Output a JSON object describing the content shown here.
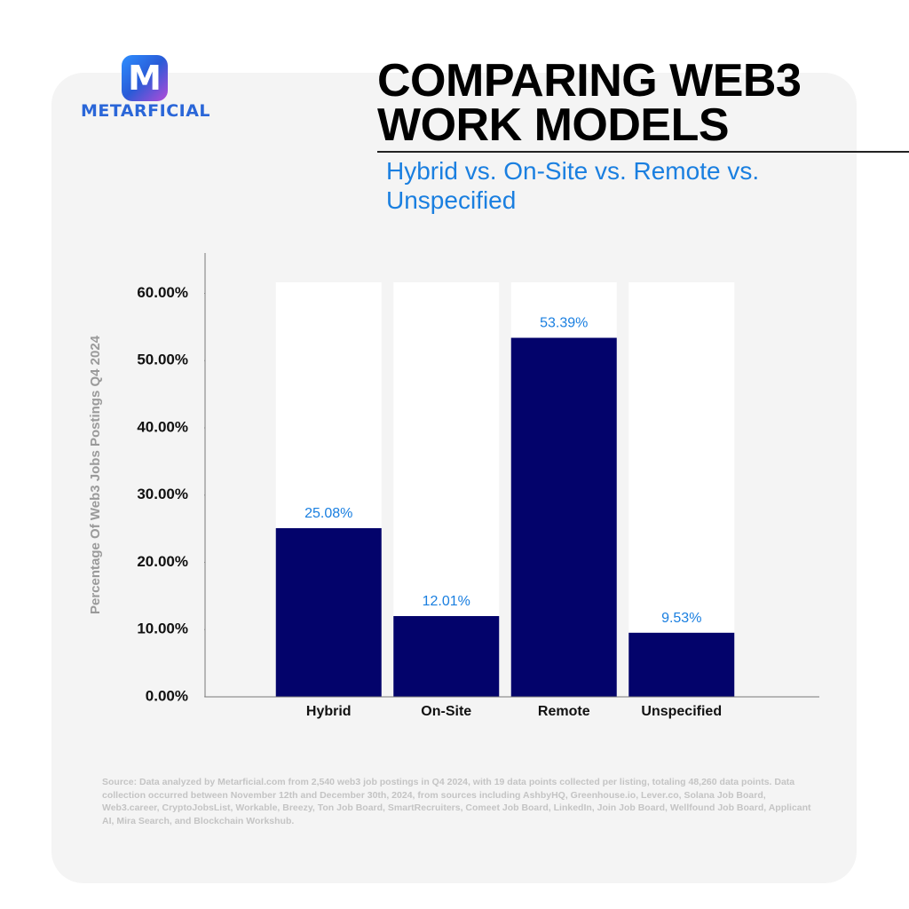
{
  "logo": {
    "letter": "M",
    "name": "METARFICIAL"
  },
  "chart_data": {
    "type": "bar",
    "title": "COMPARING WEB3 WORK MODELS",
    "subtitle": "Hybrid vs. On-Site vs. Remote vs. Unspecified",
    "y_label": "Percentage Of Web3 Jobs Postings Q4 2024",
    "categories": [
      "Hybrid",
      "On-Site",
      "Remote",
      "Unspecified"
    ],
    "values": [
      25.08,
      12.01,
      53.39,
      9.53
    ],
    "value_labels": [
      "25.08%",
      "12.01%",
      "53.39%",
      "9.53%"
    ],
    "color": "#03036b",
    "label_color": "#1a7fe0",
    "ylim": [
      0,
      66
    ],
    "yticks": [
      {
        "value": 0,
        "label": "0.00%"
      },
      {
        "value": 10,
        "label": "10.00%"
      },
      {
        "value": 20,
        "label": "20.00%"
      },
      {
        "value": 30,
        "label": "30.00%"
      },
      {
        "value": 40,
        "label": "40.00%"
      },
      {
        "value": 50,
        "label": "50.00%"
      },
      {
        "value": 60,
        "label": "60.00%"
      }
    ],
    "grid": false,
    "source": "Source: Data analyzed by Metarficial.com from 2,540 web3 job postings in Q4 2024, with 19 data points collected per listing, totaling 48,260 data points. Data collection occurred between November 12th and December 30th, 2024, from sources including AshbyHQ, Greenhouse.io, Lever.co, Solana Job Board, Web3.career, CryptoJobsList, Workable, Breezy, Ton Job Board, SmartRecruiters, Comeet Job Board, LinkedIn, Join Job Board, Wellfound Job Board, Applicant AI, Mira Search, and Blockchain Workshub."
  }
}
